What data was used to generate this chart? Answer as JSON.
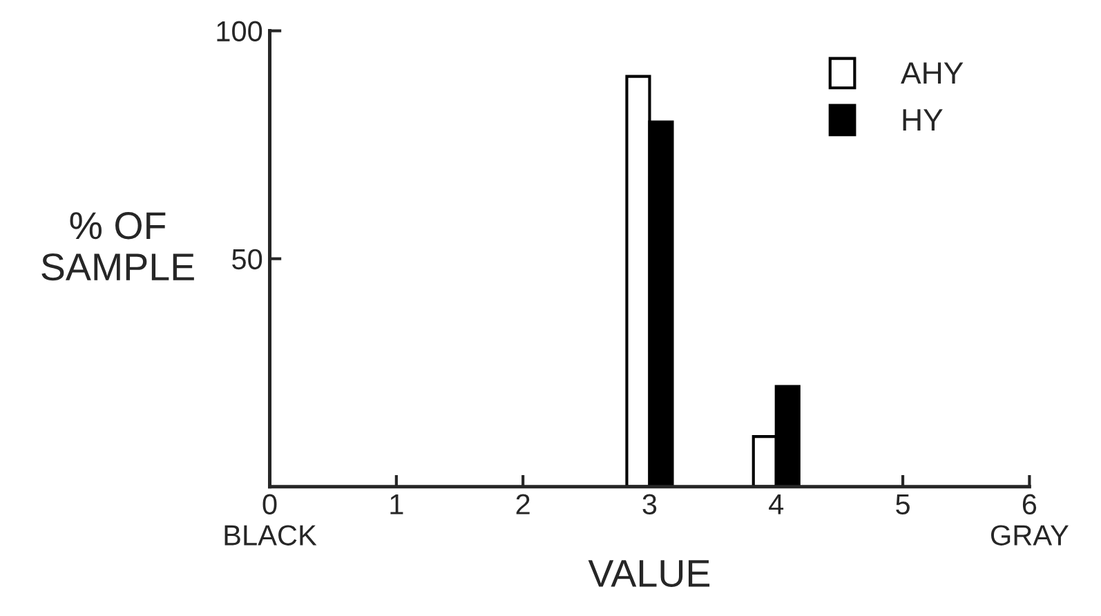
{
  "chart_data": {
    "type": "bar",
    "xlabel": "VALUE",
    "ylabel": "% OF\nSAMPLE",
    "x": [
      3,
      4
    ],
    "series": [
      {
        "name": "AHY",
        "color": "#ffffff",
        "values": [
          90,
          11
        ]
      },
      {
        "name": "HY",
        "color": "#000000",
        "values": [
          80,
          22
        ]
      }
    ],
    "xlim": [
      0,
      6
    ],
    "ylim": [
      0,
      100
    ],
    "xticks": [
      {
        "value": 0,
        "label": "0\nBLACK"
      },
      1,
      2,
      3,
      4,
      5,
      {
        "value": 6,
        "label": "6\nGRAY"
      }
    ],
    "yticks": [
      50,
      100
    ],
    "grid": false,
    "legend": "top right"
  }
}
